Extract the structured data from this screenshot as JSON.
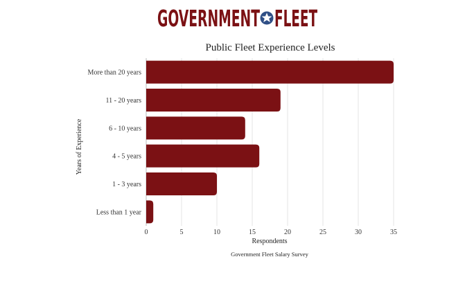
{
  "logo": {
    "word_left": "GOVERNMENT",
    "word_right": "FLEET",
    "brand_color": "#7b1114",
    "star_color": "#2f4f86"
  },
  "chart_data": {
    "type": "bar",
    "orientation": "horizontal",
    "title": "Public Fleet Experience Levels",
    "xlabel": "Respondents",
    "ylabel": "Years of Experience",
    "source": "Government Fleet Salary Survey",
    "categories": [
      "More than 20 years",
      "11 - 20 years",
      "6 - 10 years",
      "4 - 5 years",
      "1 - 3 years",
      "Less than 1 year"
    ],
    "values": [
      35,
      19,
      14,
      16,
      10,
      1
    ],
    "xlim": [
      0,
      35
    ],
    "xticks": [
      0,
      5,
      10,
      15,
      20,
      25,
      30,
      35
    ],
    "grid": "vertical",
    "bar_color": "#7b1114"
  }
}
